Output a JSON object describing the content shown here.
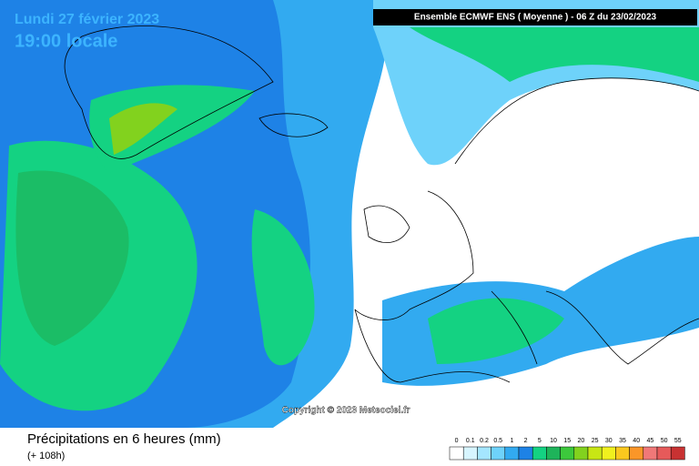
{
  "header": {
    "date": "Lundi 27 février 2023",
    "time": "19:00 locale",
    "model": "Ensemble ECMWF ENS  ( Moyenne )  -  06 Z du 23/02/2023"
  },
  "map": {
    "copyright": "Copyright © 2023 Meteociel.fr"
  },
  "footer": {
    "title": "Précipitations en 6 heures (mm)",
    "lead": "(+ 108h)"
  },
  "legend": [
    {
      "label": 0,
      "color": "#ffffff"
    },
    {
      "label": 0.1,
      "color": "#d7f5ff"
    },
    {
      "label": 0.2,
      "color": "#a5e6ff"
    },
    {
      "label": 0.5,
      "color": "#6ed2fa"
    },
    {
      "label": 1,
      "color": "#32aaf0"
    },
    {
      "label": 2,
      "color": "#1e82e6"
    },
    {
      "label": 5,
      "color": "#14d282"
    },
    {
      "label": 10,
      "color": "#1eb45a"
    },
    {
      "label": 15,
      "color": "#3cc83c"
    },
    {
      "label": 20,
      "color": "#82d21e"
    },
    {
      "label": 25,
      "color": "#c8e614"
    },
    {
      "label": 30,
      "color": "#f0f01e"
    },
    {
      "label": 35,
      "color": "#fac81e"
    },
    {
      "label": 40,
      "color": "#fa9628"
    },
    {
      "label": 45,
      "color": "#f07878"
    },
    {
      "label": 50,
      "color": "#e65a5a"
    },
    {
      "label": 55,
      "color": "#c83232"
    }
  ]
}
